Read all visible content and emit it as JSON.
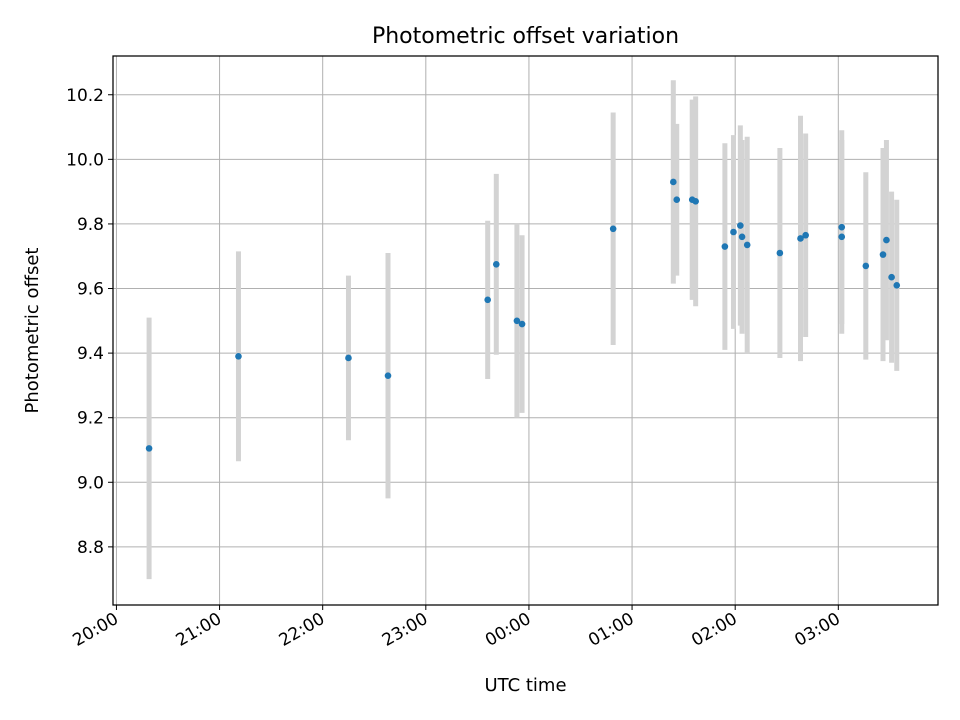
{
  "chart_data": {
    "type": "scatter",
    "title": "Photometric offset variation",
    "xlabel": "UTC time",
    "ylabel": "Photometric offset",
    "xlim": [
      "19:58",
      "03:58"
    ],
    "ylim": [
      8.62,
      10.32
    ],
    "grid": true,
    "x_ticks": [
      "20:00",
      "21:00",
      "22:00",
      "23:00",
      "00:00",
      "01:00",
      "02:00",
      "03:00"
    ],
    "y_ticks": [
      8.8,
      9.0,
      9.2,
      9.4,
      9.6,
      9.8,
      10.0,
      10.2
    ],
    "y_tick_labels": [
      "8.8",
      "9.0",
      "9.2",
      "9.4",
      "9.6",
      "9.8",
      "10.0",
      "10.2"
    ],
    "series": [
      {
        "color": "#1f77b4",
        "error_color": "#d3d3d3",
        "points": [
          {
            "t": "20:19",
            "y": 9.105,
            "err": 0.405
          },
          {
            "t": "21:11",
            "y": 9.39,
            "err": 0.325
          },
          {
            "t": "22:15",
            "y": 9.385,
            "err": 0.255
          },
          {
            "t": "22:38",
            "y": 9.33,
            "err": 0.38
          },
          {
            "t": "23:36",
            "y": 9.565,
            "err": 0.245
          },
          {
            "t": "23:41",
            "y": 9.675,
            "err": 0.28
          },
          {
            "t": "23:53",
            "y": 9.5,
            "err": 0.3
          },
          {
            "t": "23:56",
            "y": 9.49,
            "err": 0.275
          },
          {
            "t": "00:49",
            "y": 9.785,
            "err": 0.36
          },
          {
            "t": "01:24",
            "y": 9.93,
            "err": 0.315
          },
          {
            "t": "01:26",
            "y": 9.875,
            "err": 0.235
          },
          {
            "t": "01:35",
            "y": 9.875,
            "err": 0.31
          },
          {
            "t": "01:37",
            "y": 9.87,
            "err": 0.325
          },
          {
            "t": "01:54",
            "y": 9.73,
            "err": 0.32
          },
          {
            "t": "01:59",
            "y": 9.775,
            "err": 0.3
          },
          {
            "t": "02:03",
            "y": 9.795,
            "err": 0.31
          },
          {
            "t": "02:04",
            "y": 9.76,
            "err": 0.3
          },
          {
            "t": "02:07",
            "y": 9.735,
            "err": 0.335
          },
          {
            "t": "02:26",
            "y": 9.71,
            "err": 0.325
          },
          {
            "t": "02:38",
            "y": 9.755,
            "err": 0.38
          },
          {
            "t": "02:41",
            "y": 9.765,
            "err": 0.315
          },
          {
            "t": "03:02",
            "y": 9.79,
            "err": 0.3
          },
          {
            "t": "03:02",
            "y": 9.76,
            "err": 0.3
          },
          {
            "t": "03:16",
            "y": 9.67,
            "err": 0.29
          },
          {
            "t": "03:26",
            "y": 9.705,
            "err": 0.33
          },
          {
            "t": "03:28",
            "y": 9.75,
            "err": 0.31
          },
          {
            "t": "03:31",
            "y": 9.635,
            "err": 0.265
          },
          {
            "t": "03:34",
            "y": 9.61,
            "err": 0.265
          }
        ]
      }
    ]
  }
}
